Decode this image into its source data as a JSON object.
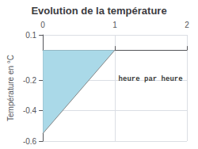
{
  "chart_data": {
    "type": "area",
    "title": "Evolution de la température",
    "ylabel": "Température en °C",
    "xlim": [
      0,
      2
    ],
    "ylim": [
      -0.6,
      0.1
    ],
    "xticks": [
      0,
      1,
      2
    ],
    "yticks": [
      0.1,
      -0.2,
      -0.4,
      -0.6
    ],
    "grid": true,
    "series": [
      {
        "type": "area",
        "color": "#aad9e8",
        "x": [
          0,
          0,
          1
        ],
        "values": [
          0,
          -0.55,
          0
        ]
      },
      {
        "type": "line",
        "color": "#888888",
        "x": [
          0,
          1
        ],
        "values": [
          -0.55,
          0
        ]
      }
    ],
    "annotations": [
      {
        "text": "heure par heure",
        "x": 1.05,
        "y": -0.17
      }
    ]
  }
}
